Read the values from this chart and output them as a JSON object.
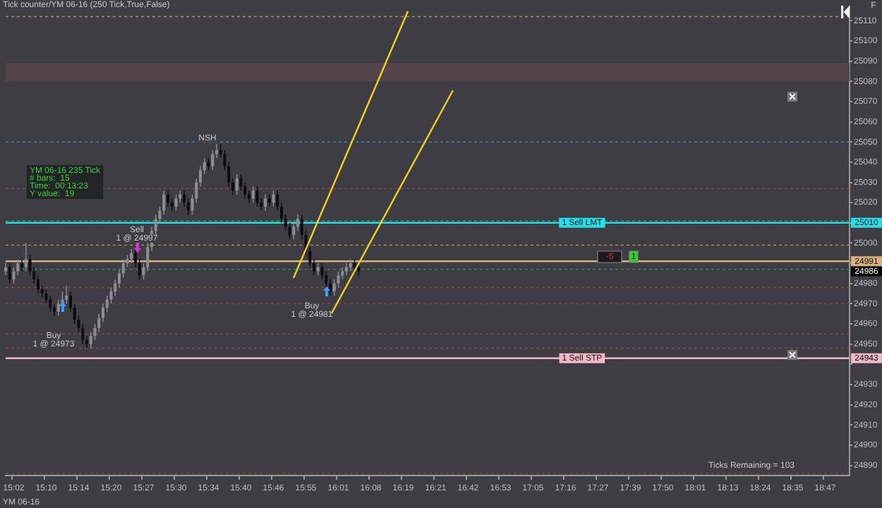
{
  "chart_data": {
    "type": "candlestick",
    "title": "Tick counter/YM 06-16 (250 Tick,True,False)",
    "categories": [
      null,
      null,
      "15:02",
      null,
      null,
      null,
      null,
      null,
      null,
      null,
      "15:10",
      null,
      null,
      null,
      null,
      null,
      null,
      null,
      "15:14",
      null,
      null,
      null,
      null,
      null,
      null,
      null,
      "15:20",
      null,
      null,
      null,
      null,
      null,
      null,
      null,
      "15:27",
      null,
      null,
      null,
      null,
      null,
      null,
      null,
      "15:30",
      null,
      null,
      null,
      null,
      null,
      null,
      null,
      "15:34",
      null,
      null,
      null,
      null,
      null,
      null,
      null,
      "15:40",
      null,
      null,
      null,
      null,
      null,
      null,
      null,
      "15:46",
      null,
      null,
      null,
      null,
      null,
      null,
      null,
      "15:55",
      null,
      null,
      null,
      null,
      null,
      null,
      null,
      "16:01",
      null,
      null,
      null,
      null,
      null,
      null,
      null,
      "16:08",
      null,
      null,
      null,
      null,
      null,
      null,
      null,
      "16:19",
      null,
      null,
      null,
      null,
      null,
      null,
      null,
      "16:21",
      null,
      null,
      null,
      null,
      null,
      null,
      null,
      "16:42",
      null,
      null,
      null,
      null,
      null,
      null,
      null,
      "16:53",
      null,
      null,
      null,
      null,
      null,
      null,
      null,
      "17:05",
      null,
      null,
      null,
      null,
      null,
      null,
      null,
      "17:16",
      null,
      null,
      null,
      null,
      null,
      null,
      null,
      "17:27",
      null,
      null,
      null,
      null,
      null,
      null,
      null,
      "17:39",
      null,
      null,
      null,
      null,
      null,
      null,
      null,
      "17:50",
      null,
      null,
      null,
      null,
      null,
      null,
      null,
      "18:01",
      null,
      null,
      null,
      null,
      null,
      null,
      null,
      "18:13",
      null,
      null,
      null,
      null,
      null,
      null,
      null,
      "18:24",
      null,
      null,
      null,
      null,
      null,
      null,
      null,
      "18:35",
      null,
      null,
      null,
      null,
      null,
      null,
      null,
      "18:47",
      null,
      null,
      null,
      null,
      null,
      null
    ],
    "ohlc": [
      [
        24986,
        24990,
        24984,
        24988
      ],
      [
        24988,
        24990,
        24980,
        24982
      ],
      [
        24982,
        24988,
        24980,
        24986
      ],
      [
        24986,
        24992,
        24984,
        24990
      ],
      [
        24990,
        24992,
        24986,
        24988
      ],
      [
        24988,
        25000,
        24986,
        24992
      ],
      [
        24992,
        24994,
        24984,
        24986
      ],
      [
        24986,
        24988,
        24980,
        24982
      ],
      [
        24982,
        24984,
        24975,
        24977
      ],
      [
        24977,
        24979,
        24973,
        24975
      ],
      [
        24975,
        24977,
        24970,
        24972
      ],
      [
        24972,
        24974,
        24966,
        24968
      ],
      [
        24968,
        24970,
        24964,
        24966
      ],
      [
        24966,
        24972,
        24964,
        24970
      ],
      [
        24970,
        24976,
        24968,
        24972
      ],
      [
        24972,
        24979,
        24970,
        24974
      ],
      [
        24974,
        24976,
        24966,
        24968
      ],
      [
        24968,
        24970,
        24960,
        24962
      ],
      [
        24962,
        24964,
        24956,
        24958
      ],
      [
        24958,
        24960,
        24950,
        24952
      ],
      [
        24952,
        24954,
        24948,
        24950
      ],
      [
        24950,
        24956,
        24948,
        24954
      ],
      [
        24954,
        24960,
        24952,
        24958
      ],
      [
        24958,
        24965,
        24956,
        24963
      ],
      [
        24963,
        24970,
        24961,
        24968
      ],
      [
        24968,
        24974,
        24966,
        24972
      ],
      [
        24972,
        24978,
        24970,
        24976
      ],
      [
        24976,
        24982,
        24974,
        24980
      ],
      [
        24980,
        24987,
        24978,
        24985
      ],
      [
        24985,
        24992,
        24983,
        24990
      ],
      [
        24990,
        24994,
        24988,
        24992
      ],
      [
        24992,
        24997,
        24990,
        24995
      ],
      [
        24995,
        24997,
        24988,
        24990
      ],
      [
        24990,
        24992,
        24982,
        24984
      ],
      [
        24984,
        24990,
        24982,
        24988
      ],
      [
        24988,
        25000,
        24986,
        24998
      ],
      [
        24998,
        25008,
        24996,
        25006
      ],
      [
        25006,
        25014,
        25004,
        25012
      ],
      [
        25012,
        25018,
        25010,
        25016
      ],
      [
        25016,
        25026,
        25014,
        25024
      ],
      [
        25024,
        25026,
        25018,
        25020
      ],
      [
        25020,
        25022,
        25016,
        25018
      ],
      [
        25018,
        25024,
        25016,
        25022
      ],
      [
        25022,
        25026,
        25020,
        25024
      ],
      [
        25024,
        25026,
        25018,
        25020
      ],
      [
        25020,
        25022,
        25014,
        25016
      ],
      [
        25016,
        25024,
        25014,
        25022
      ],
      [
        25022,
        25032,
        25020,
        25030
      ],
      [
        25030,
        25038,
        25028,
        25036
      ],
      [
        25036,
        25042,
        25034,
        25040
      ],
      [
        25040,
        25042,
        25036,
        25038
      ],
      [
        25038,
        25046,
        25036,
        25044
      ],
      [
        25044,
        25049,
        25042,
        25046
      ],
      [
        25046,
        25049,
        25042,
        25044
      ],
      [
        25044,
        25046,
        25036,
        25038
      ],
      [
        25038,
        25040,
        25028,
        25030
      ],
      [
        25030,
        25032,
        25024,
        25026
      ],
      [
        25026,
        25034,
        25024,
        25032
      ],
      [
        25032,
        25034,
        25026,
        25028
      ],
      [
        25028,
        25030,
        25022,
        25024
      ],
      [
        25024,
        25026,
        25020,
        25022
      ],
      [
        25022,
        25028,
        25020,
        25026
      ],
      [
        25026,
        25028,
        25018,
        25020
      ],
      [
        25020,
        25022,
        25016,
        25018
      ],
      [
        25018,
        25024,
        25016,
        25022
      ],
      [
        25022,
        25024,
        25018,
        25020
      ],
      [
        25020,
        25026,
        25018,
        25024
      ],
      [
        25024,
        25026,
        25016,
        25018
      ],
      [
        25018,
        25020,
        25010,
        25012
      ],
      [
        25012,
        25014,
        25006,
        25008
      ],
      [
        25008,
        25010,
        25002,
        25004
      ],
      [
        25004,
        25010,
        25002,
        25008
      ],
      [
        25008,
        25014,
        25006,
        25012
      ],
      [
        25012,
        25014,
        25002,
        25004
      ],
      [
        25004,
        25006,
        24994,
        24996
      ],
      [
        24996,
        24998,
        24988,
        24990
      ],
      [
        24990,
        24992,
        24984,
        24986
      ],
      [
        24986,
        24990,
        24984,
        24988
      ],
      [
        24988,
        24990,
        24982,
        24984
      ],
      [
        24984,
        24986,
        24978,
        24980
      ],
      [
        24980,
        24982,
        24974,
        24976
      ],
      [
        24976,
        24982,
        24974,
        24980
      ],
      [
        24980,
        24986,
        24978,
        24984
      ],
      [
        24984,
        24988,
        24982,
        24986
      ],
      [
        24986,
        24990,
        24984,
        24988
      ],
      [
        24988,
        24992,
        24986,
        24990
      ],
      [
        24990,
        24992,
        24986,
        24988
      ],
      [
        24988,
        24990,
        24984,
        24986
      ],
      null,
      null,
      null,
      null,
      null,
      null,
      null,
      null,
      null,
      null,
      null,
      null,
      null,
      null,
      null,
      null,
      null,
      null,
      null,
      null,
      null,
      null,
      null,
      null,
      null,
      null,
      null,
      null,
      null,
      null,
      null,
      null,
      null,
      null,
      null,
      null,
      null,
      null,
      null,
      null,
      null,
      null,
      null,
      null,
      null,
      null,
      null,
      null,
      null,
      null,
      null,
      null,
      null,
      null,
      null,
      null,
      null,
      null,
      null,
      null,
      null,
      null,
      null,
      null,
      null,
      null,
      null,
      null,
      null,
      null,
      null,
      null,
      null,
      null,
      null,
      null,
      null,
      null,
      null,
      null,
      null,
      null,
      null,
      null,
      null,
      null,
      null,
      null,
      null,
      null,
      null,
      null,
      null,
      null,
      null,
      null,
      null,
      null,
      null,
      null,
      null,
      null,
      null,
      null,
      null,
      null,
      null,
      null,
      null,
      null,
      null,
      null,
      null,
      null,
      null,
      null,
      null,
      null,
      null,
      null,
      null
    ],
    "colors": [
      "#8d8d94",
      "#0d0d0f",
      "#8d8d94",
      "#8d8d94",
      "#0d0d0f",
      "#8d8d94",
      "#0d0d0f",
      "#0d0d0f",
      "#0d0d0f",
      "#0d0d0f",
      "#0d0d0f",
      "#0d0d0f",
      "#0d0d0f",
      "#8d8d94",
      "#8d8d94",
      "#8d8d94",
      "#0d0d0f",
      "#0d0d0f",
      "#0d0d0f",
      "#0d0d0f",
      "#0d0d0f",
      "#8d8d94",
      "#8d8d94",
      "#8d8d94",
      "#8d8d94",
      "#8d8d94",
      "#8d8d94",
      "#8d8d94",
      "#8d8d94",
      "#8d8d94",
      "#8d8d94",
      "#8d8d94",
      "#0d0d0f",
      "#0d0d0f",
      "#8d8d94",
      "#8d8d94",
      "#8d8d94",
      "#8d8d94",
      "#8d8d94",
      "#8d8d94",
      "#0d0d0f",
      "#0d0d0f",
      "#8d8d94",
      "#8d8d94",
      "#0d0d0f",
      "#0d0d0f",
      "#8d8d94",
      "#8d8d94",
      "#8d8d94",
      "#8d8d94",
      "#0d0d0f",
      "#8d8d94",
      "#8d8d94",
      "#0d0d0f",
      "#0d0d0f",
      "#0d0d0f",
      "#0d0d0f",
      "#8d8d94",
      "#0d0d0f",
      "#0d0d0f",
      "#0d0d0f",
      "#8d8d94",
      "#0d0d0f",
      "#0d0d0f",
      "#8d8d94",
      "#0d0d0f",
      "#8d8d94",
      "#0d0d0f",
      "#0d0d0f",
      "#0d0d0f",
      "#0d0d0f",
      "#8d8d94",
      "#8d8d94",
      "#0d0d0f",
      "#0d0d0f",
      "#0d0d0f",
      "#0d0d0f",
      "#8d8d94",
      "#0d0d0f",
      "#0d0d0f",
      "#0d0d0f",
      "#8d8d94",
      "#8d8d94",
      "#8d8d94",
      "#8d8d94",
      "#8d8d94",
      "#0d0d0f",
      "#0d0d0f",
      null,
      null,
      null,
      null,
      null,
      null,
      null,
      null,
      null,
      null,
      null,
      null,
      null,
      null,
      null,
      null,
      null,
      null,
      null,
      null,
      null,
      null,
      null,
      null,
      null,
      null,
      null,
      null,
      null,
      null,
      null,
      null,
      null,
      null,
      null,
      null,
      null,
      null,
      null,
      null,
      null,
      null,
      null,
      null,
      null,
      null,
      null,
      null,
      null,
      null,
      null,
      null,
      null,
      null,
      null,
      null,
      null,
      null,
      null,
      null,
      null,
      null,
      null,
      null,
      null,
      null,
      null,
      null,
      null,
      null,
      null,
      null,
      null,
      null,
      null,
      null,
      null,
      null,
      null,
      null,
      null,
      null,
      null,
      null,
      null,
      null,
      null,
      null,
      null,
      null,
      null,
      null,
      null,
      null,
      null,
      null,
      null,
      null,
      null,
      null,
      null,
      null,
      null,
      null,
      null,
      null,
      null,
      null,
      null,
      null,
      null,
      null,
      null,
      null,
      null,
      null,
      null,
      null,
      null,
      null,
      null
    ],
    "ylim": [
      24885,
      25117
    ],
    "yticks": [
      24890,
      24900,
      24910,
      24920,
      24930,
      {
        "value": 24940,
        "label": null
      },
      24950,
      24960,
      24970,
      24980,
      {
        "value": 24990,
        "label": null
      },
      25000,
      {
        "value": 25010,
        "label": null
      },
      25020,
      25030,
      25040,
      25050,
      25060,
      25070,
      25080,
      25090,
      25100,
      25110
    ],
    "grid": false,
    "bands": [
      {
        "axis": "y",
        "from": 25080,
        "to": 25089,
        "color": "#56444b"
      }
    ],
    "ref_lines": [
      {
        "axis": "y",
        "value": 25112,
        "color": "#a59a3c",
        "line_style": "dashed"
      },
      {
        "axis": "y",
        "value": 25050,
        "color": "#4d7cb3",
        "line_style": "dashed"
      },
      {
        "axis": "y",
        "value": 25027,
        "color": "#8a4a42",
        "line_style": "dashed"
      },
      {
        "axis": "y",
        "value": 25011,
        "color": "#2f9a55",
        "line_style": "dashed"
      },
      {
        "axis": "y",
        "value": 25010,
        "label": "1 Sell LMT",
        "color": "#22e0ea",
        "line_style": "solid"
      },
      {
        "axis": "y",
        "value": 24999,
        "color": "#b0a040",
        "line_style": "dashed"
      },
      {
        "axis": "y",
        "value": 24991,
        "color": "#d8b07a",
        "line_style": "solid"
      },
      {
        "axis": "y",
        "value": 24987,
        "color": "#2f8a3a",
        "line_style": "dashed"
      },
      {
        "axis": "y",
        "value": 24978,
        "color": "#8a4a42",
        "line_style": "dashed"
      },
      {
        "axis": "y",
        "value": 24970,
        "color": "#8a3a3a",
        "line_style": "dashed"
      },
      {
        "axis": "y",
        "value": 24955,
        "color": "#8a4a42",
        "line_style": "dashed"
      },
      {
        "axis": "y",
        "value": 24948,
        "color": "#8a4a42",
        "line_style": "dashed"
      },
      {
        "axis": "y",
        "value": 24943,
        "label": "1 Sell STP",
        "color": "#f2b8c6",
        "line_style": "solid"
      },
      {
        "axis": "y",
        "value": 24886,
        "color": "#8a4a42",
        "line_style": "dashed"
      }
    ],
    "annotations": [
      {
        "text": "NSH",
        "y": 25052
      },
      "Sell\n1 @ 24997",
      "Buy\n1 @ 24973",
      "Buy\n1 @ 24981",
      "YM 06-16 235 Tick\n# bars:  15\nTime:  00:13:23\nY value:  19",
      "Ticks Remaining = 103",
      "YM 06-16",
      {
        "text": "24986",
        "y": 24986
      },
      "-5",
      "1",
      "F",
      {
        "text": "25010",
        "y": 25010
      },
      {
        "text": "24991",
        "y": 24991
      },
      {
        "text": "24943",
        "y": 24943
      }
    ],
    "legend": false
  }
}
